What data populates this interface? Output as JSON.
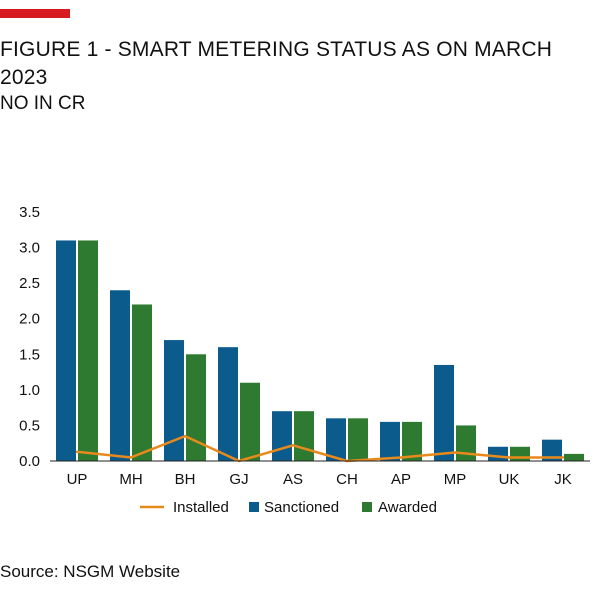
{
  "page": {
    "title": "FIGURE 1 - SMART METERING STATUS AS ON MARCH 2023",
    "subtitle": "NO IN CR",
    "source": "Source: NSGM Website"
  },
  "colors": {
    "accent": "#d71920",
    "sanctioned": "#0b5c8c",
    "awarded": "#2e7a30",
    "installed": "#e8891c"
  },
  "chart_data": {
    "type": "bar",
    "categories": [
      "UP",
      "MH",
      "BH",
      "GJ",
      "AS",
      "CH",
      "AP",
      "MP",
      "UK",
      "JK"
    ],
    "series": [
      {
        "name": "Sanctioned",
        "type": "bar",
        "values": [
          3.1,
          2.4,
          1.7,
          1.6,
          0.7,
          0.6,
          0.55,
          1.35,
          0.2,
          0.3
        ]
      },
      {
        "name": "Awarded",
        "type": "bar",
        "values": [
          3.1,
          2.2,
          1.5,
          1.1,
          0.7,
          0.6,
          0.55,
          0.5,
          0.2,
          0.1
        ]
      },
      {
        "name": "Installed",
        "type": "line",
        "values": [
          0.13,
          0.05,
          0.35,
          0.0,
          0.22,
          0.0,
          0.05,
          0.12,
          0.05,
          0.05
        ]
      }
    ],
    "legend_order": [
      "Installed",
      "Sanctioned",
      "Awarded"
    ],
    "legend_position": "bottom",
    "ylim": [
      0,
      3.5
    ],
    "yticks": [
      "0.0",
      "0.5",
      "1.0",
      "1.5",
      "2.0",
      "2.5",
      "3.0",
      "3.5"
    ],
    "grid": false
  }
}
